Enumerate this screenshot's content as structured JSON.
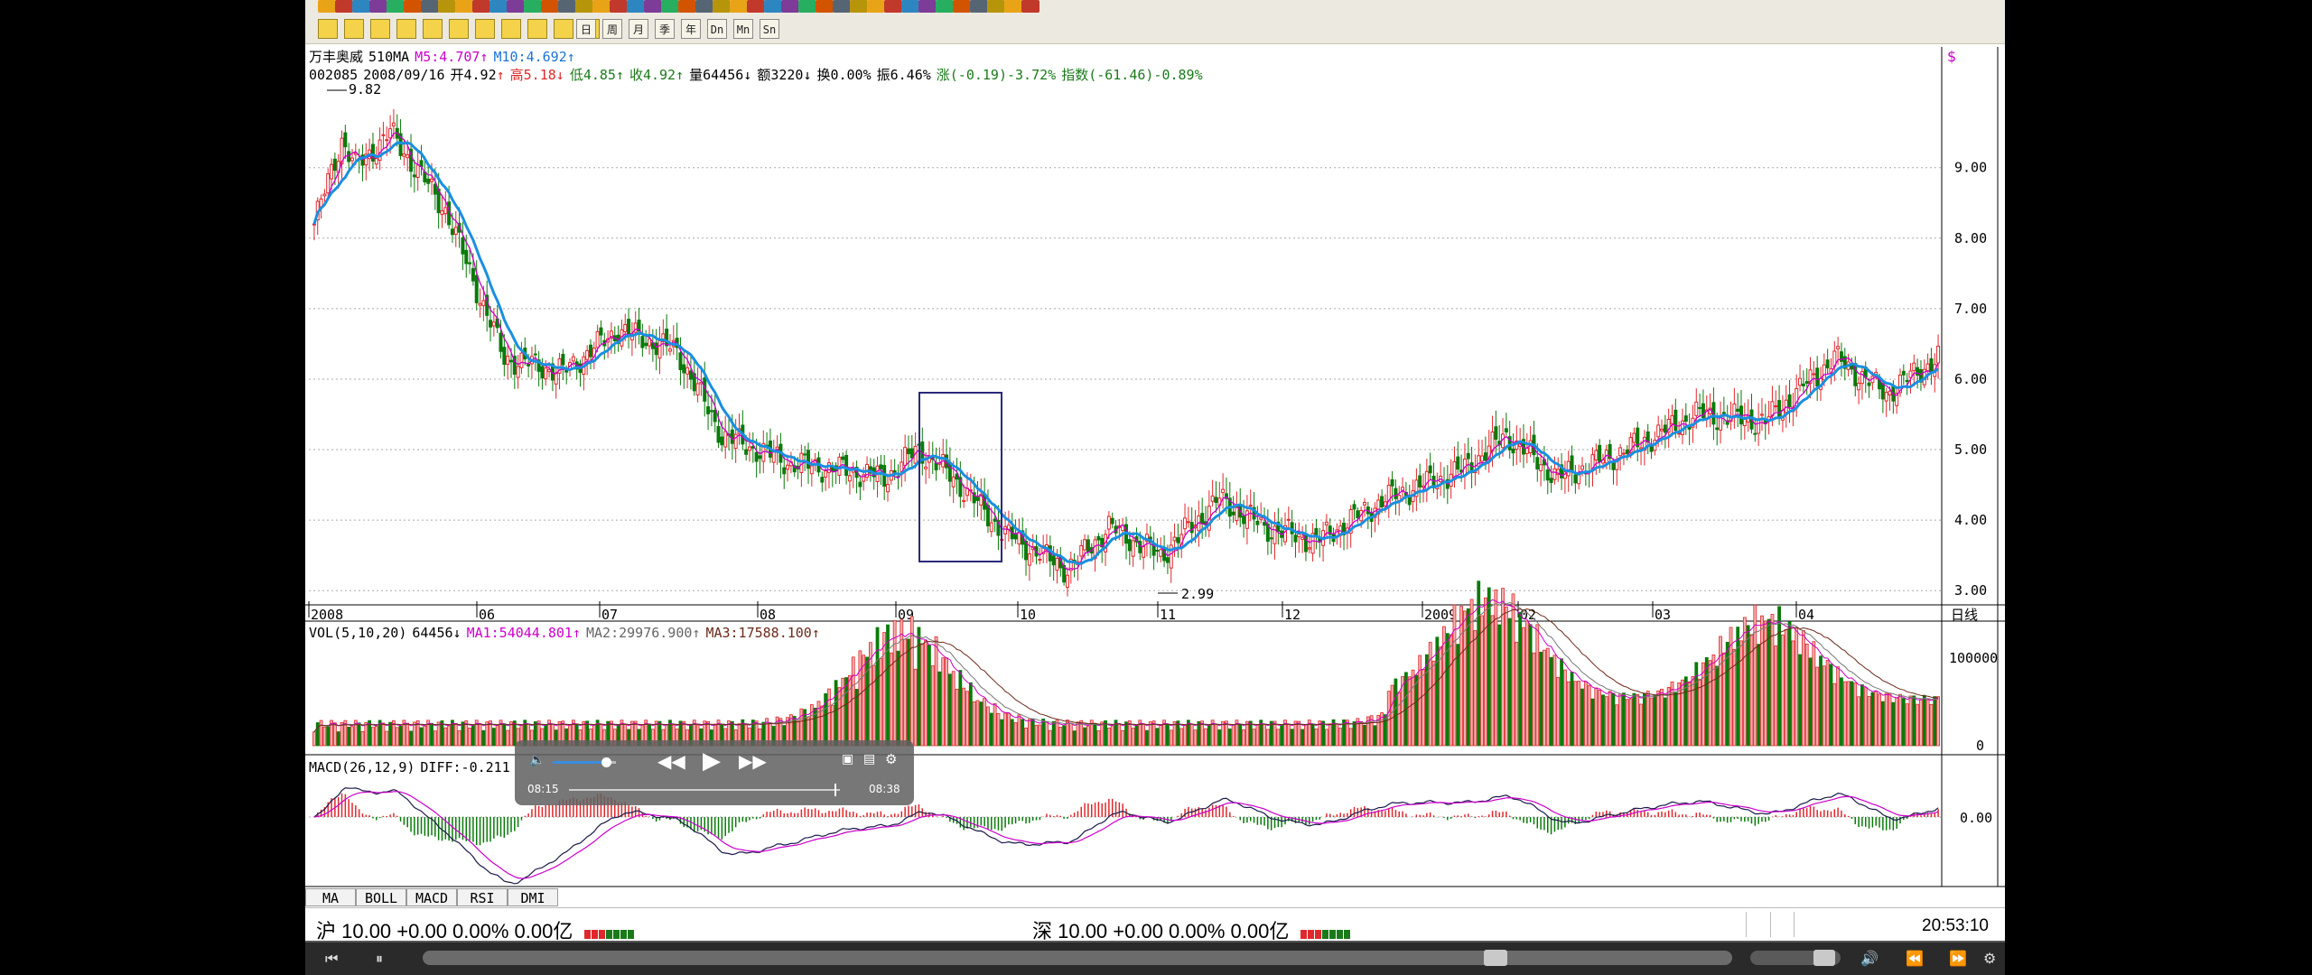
{
  "stock": {
    "name": "万丰奥威",
    "period_tag": "510MA",
    "ma5_label": "M5:4.707",
    "ma10_label": "M10:4.692",
    "code": "002085",
    "date": "2008/09/16",
    "open": "开4.92",
    "high": "高5.18",
    "low": "低4.85",
    "close": "收4.92",
    "volume": "量64456",
    "amount": "额3220",
    "turnover": "换0.00%",
    "amplitude": "振6.46%",
    "change": "涨(-0.19)-3.72%",
    "index_change": "指数(-61.46)-0.89%",
    "arrow_up": "↑",
    "arrow_down": "↓"
  },
  "main_chart": {
    "high_marker": "9.82",
    "low_marker": "2.99",
    "y_ticks": [
      "9.00",
      "8.00",
      "7.00",
      "6.00",
      "5.00",
      "4.00",
      "3.00"
    ],
    "x_ticks": [
      "2008",
      "06",
      "07",
      "08",
      "09",
      "10",
      "11",
      "12",
      "2009",
      "02",
      "03",
      "04"
    ],
    "period_label": "日线",
    "right_icon": "$",
    "colors": {
      "up": "#e0282c",
      "down": "#0a7a0a",
      "ma5": "#cc00cc",
      "ma10": "#1a8fe0",
      "box": "#2a2a7a"
    }
  },
  "vol_panel": {
    "label": "VOL(5,10,20)",
    "value": "64456",
    "ma1": "MA1:54044.801",
    "ma2": "MA2:29976.900",
    "ma3": "MA3:17588.100",
    "y_ticks": [
      "100000",
      "0"
    ]
  },
  "macd_panel": {
    "label": "MACD(26,12,9)",
    "diff": "DIFF:-0.211",
    "y_ticks": [
      "0.00"
    ]
  },
  "tabs": [
    "MA",
    "BOLL",
    "MACD",
    "RSI",
    "DMI"
  ],
  "status": {
    "sh": "沪 10.00 +0.00 0.00% 0.00亿",
    "sz": "深 10.00 +0.00 0.00% 0.00亿",
    "time": "20:53:10"
  },
  "toolbar2": [
    "日",
    "周",
    "月",
    "季",
    "年",
    "Dn",
    "Mn",
    "Sn"
  ],
  "video_overlay": {
    "current_time": "08:15",
    "total_time": "08:38",
    "progress": 0.98,
    "volume": 0.85
  },
  "player_progress": 0.81,
  "chart_data": {
    "type": "candlestick",
    "title": "",
    "y_range": [
      2.9,
      10.2
    ],
    "x_labels": [
      "2008",
      "06",
      "07",
      "08",
      "09",
      "10",
      "11",
      "12",
      "2009",
      "02",
      "03",
      "04"
    ],
    "close_anchors": [
      [
        0,
        8.2
      ],
      [
        8,
        9.4
      ],
      [
        12,
        9.0
      ],
      [
        22,
        9.5
      ],
      [
        38,
        8.4
      ],
      [
        55,
        6.3
      ],
      [
        72,
        6.1
      ],
      [
        88,
        6.7
      ],
      [
        105,
        6.4
      ],
      [
        118,
        5.2
      ],
      [
        138,
        4.8
      ],
      [
        155,
        4.7
      ],
      [
        165,
        4.6
      ],
      [
        175,
        5.0
      ],
      [
        185,
        4.6
      ],
      [
        200,
        3.8
      ],
      [
        218,
        3.3
      ],
      [
        230,
        3.9
      ],
      [
        245,
        3.5
      ],
      [
        262,
        4.3
      ],
      [
        275,
        3.9
      ],
      [
        290,
        3.7
      ],
      [
        310,
        4.3
      ],
      [
        332,
        4.7
      ],
      [
        345,
        5.2
      ],
      [
        360,
        4.6
      ],
      [
        380,
        5.0
      ],
      [
        400,
        5.5
      ],
      [
        420,
        5.4
      ],
      [
        440,
        6.3
      ],
      [
        455,
        5.8
      ],
      [
        470,
        6.3
      ]
    ],
    "period_high": 9.82,
    "period_low": 2.99,
    "highlight_range_dates": [
      "09",
      "10"
    ],
    "volume_max": 100000,
    "volume_peaks": [
      [
        170,
        110000
      ],
      [
        340,
        120000
      ],
      [
        420,
        95000
      ]
    ]
  }
}
